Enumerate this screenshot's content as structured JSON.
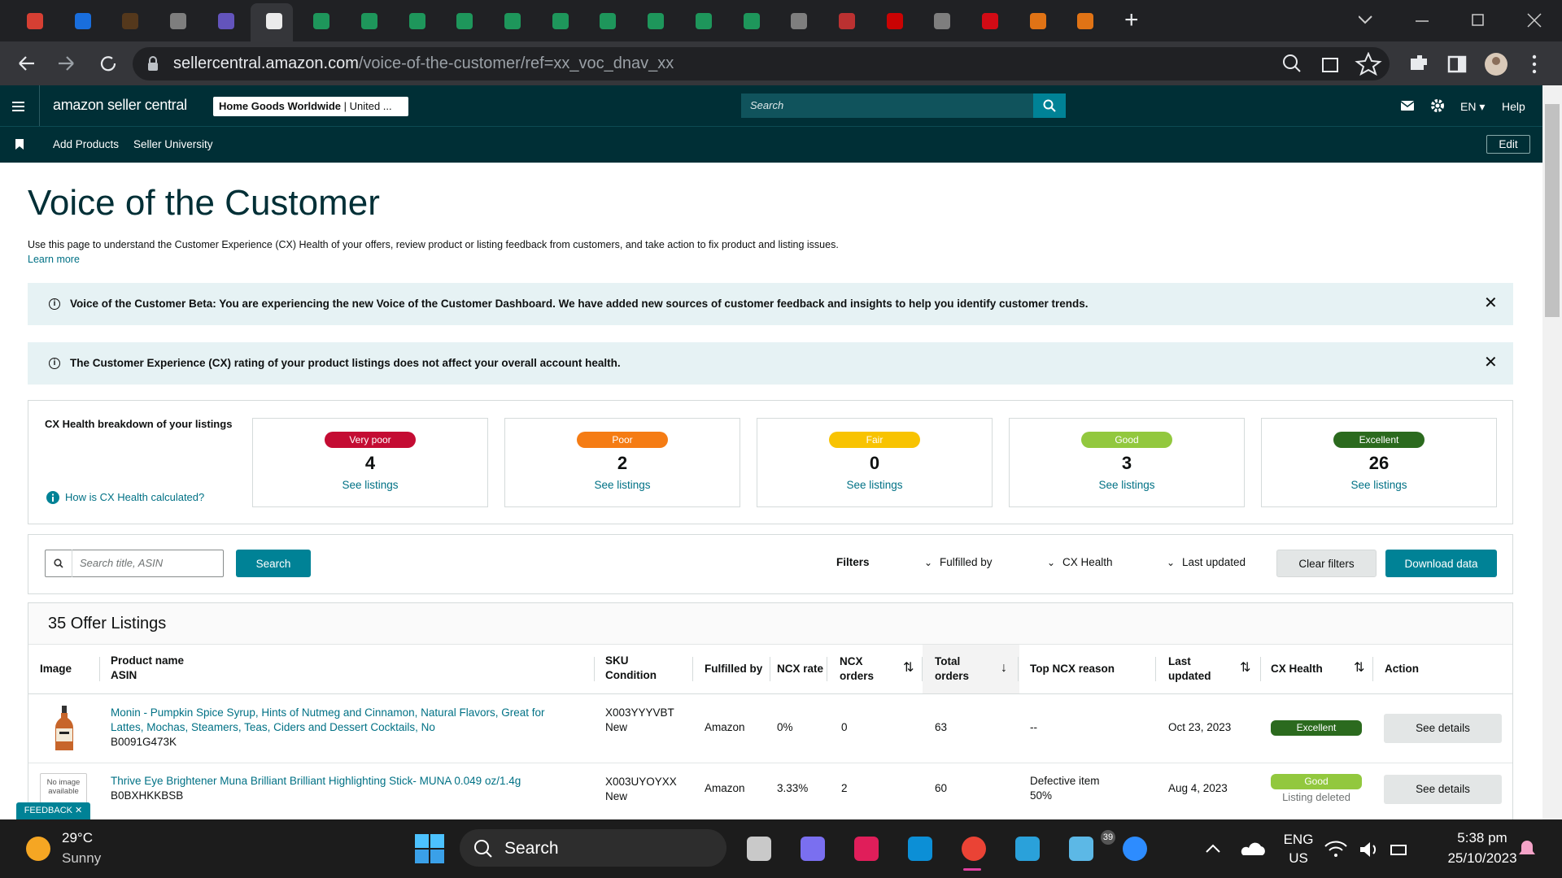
{
  "browser": {
    "url_host": "sellercentral.amazon.com",
    "url_path": "/voice-of-the-customer/ref=xx_voc_dnav_xx"
  },
  "header": {
    "logo": "amazon seller central",
    "store": "Home Goods Worldwide",
    "marketplace": "United ...",
    "search_placeholder": "Search",
    "language": "EN",
    "help": "Help"
  },
  "nav": {
    "links": [
      "Add Products",
      "Seller University"
    ],
    "edit": "Edit"
  },
  "page": {
    "title": "Voice of the Customer",
    "description": "Use this page to understand the Customer Experience (CX) Health of your offers, review product or listing feedback from customers, and take action to fix product and listing issues.",
    "learn_more": "Learn more"
  },
  "banners": [
    "Voice of the Customer Beta: You are experiencing the new Voice of the Customer Dashboard. We have added new sources of customer feedback and insights to help you identify customer trends.",
    "The Customer Experience (CX) rating of your product listings does not affect your overall account health."
  ],
  "cx_health": {
    "label": "CX Health breakdown of your listings",
    "help_link": "How is CX Health calculated?",
    "tiles": [
      {
        "rating": "Very poor",
        "count": 4,
        "link": "See listings",
        "color": "#c40c33"
      },
      {
        "rating": "Poor",
        "count": 2,
        "link": "See listings",
        "color": "#f57c14"
      },
      {
        "rating": "Fair",
        "count": 0,
        "link": "See listings",
        "color": "#f8c301"
      },
      {
        "rating": "Good",
        "count": 3,
        "link": "See listings",
        "color": "#92c83e"
      },
      {
        "rating": "Excellent",
        "count": 26,
        "link": "See listings",
        "color": "#2b6a1e"
      }
    ]
  },
  "filters": {
    "search_placeholder": "Search title, ASIN",
    "search_button": "Search",
    "filters_label": "Filters",
    "dropdowns": [
      "Fulfilled by",
      "CX Health",
      "Last updated"
    ],
    "clear": "Clear filters",
    "download": "Download data"
  },
  "table": {
    "title": "35 Offer Listings",
    "columns": [
      {
        "label": "Image"
      },
      {
        "label": "Product name",
        "sub": "ASIN"
      },
      {
        "label": "SKU",
        "sub": "Condition"
      },
      {
        "label": "Fulfilled by"
      },
      {
        "label": "NCX rate"
      },
      {
        "label": "NCX orders"
      },
      {
        "label": "Total orders"
      },
      {
        "label": "Top NCX reason"
      },
      {
        "label": "Last updated"
      },
      {
        "label": "CX Health"
      },
      {
        "label": "Action"
      }
    ],
    "rows": [
      {
        "product_name": "Monin - Pumpkin Spice Syrup, Hints of Nutmeg and Cinnamon, Natural Flavors, Great for Lattes, Mochas, Steamers, Teas, Ciders and Dessert Cocktails, No",
        "asin": "B0091G473K",
        "sku": "X003YYYVBT",
        "condition": "New",
        "fulfilled_by": "Amazon",
        "ncx_rate": "0%",
        "ncx_orders": 0,
        "total_orders": 63,
        "top_ncx_reason": "--",
        "last_updated": "Oct 23, 2023",
        "cx_health": "Excellent",
        "action": "See details"
      },
      {
        "image_placeholder": "No image available",
        "product_name": "Thrive Eye Brightener Muna Brilliant Brilliant Highlighting Stick- MUNA 0.049 oz/1.4g",
        "asin": "B0BXHKKBSB",
        "sku": "X003UYOYXX",
        "condition": "New",
        "fulfilled_by": "Amazon",
        "ncx_rate": "3.33%",
        "ncx_orders": 2,
        "total_orders": 60,
        "top_ncx_reason": "Defective item",
        "top_ncx_reason_share": "50%",
        "last_updated": "Aug 4, 2023",
        "cx_health": "Good",
        "status": "Listing deleted",
        "action": "See details"
      }
    ]
  },
  "feedback": "FEEDBACK",
  "taskbar": {
    "temperature": "29°C",
    "weather": "Sunny",
    "search": "Search",
    "language": "ENG",
    "region": "US",
    "time": "5:38 pm",
    "date": "25/10/2023",
    "badge": "39"
  }
}
